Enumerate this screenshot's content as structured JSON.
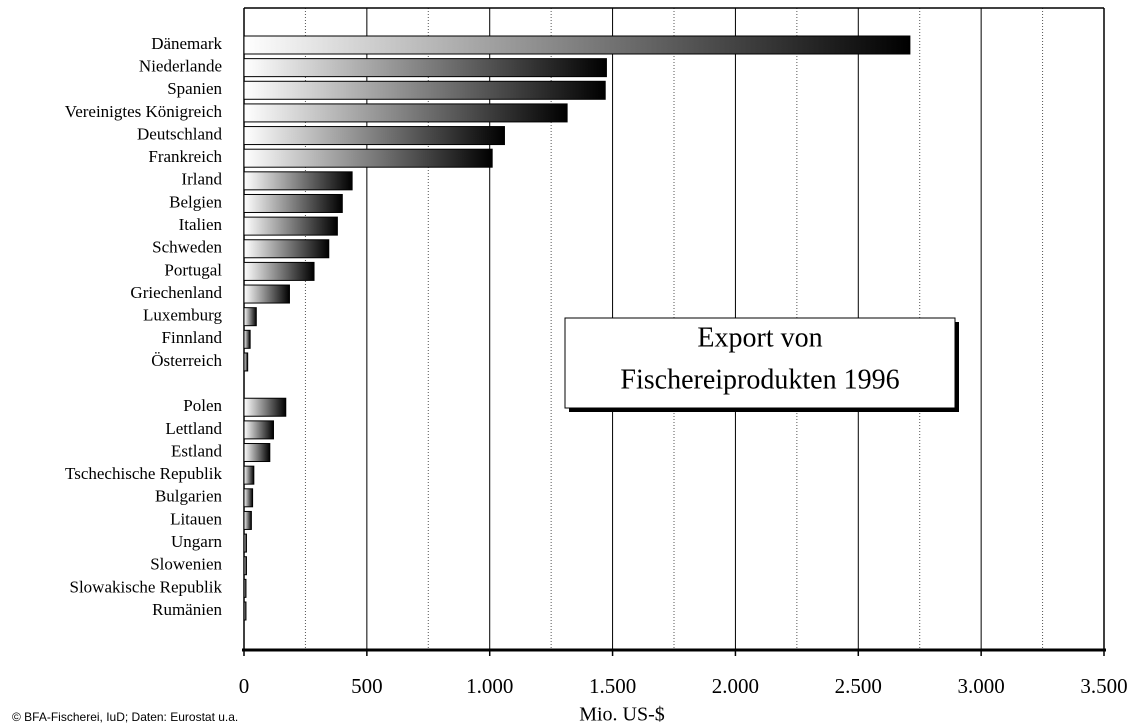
{
  "chart_data": {
    "type": "barh",
    "title": [
      "Export von",
      "Fischereiprodukten 1996"
    ],
    "xlabel": "Mio. US-$",
    "note": "© BFA-Fischerei, IuD; Daten: Eurostat u.a.",
    "categories": [
      "Dänemark",
      "Niederlande",
      "Spanien",
      "Vereinigtes Königreich",
      "Deutschland",
      "Frankreich",
      "Irland",
      "Belgien",
      "Italien",
      "Schweden",
      "Portugal",
      "Griechenland",
      "Luxemburg",
      "Finnland",
      "Österreich",
      null,
      "Polen",
      "Lettland",
      "Estland",
      "Tschechische Republik",
      "Bulgarien",
      "Litauen",
      "Ungarn",
      "Slowenien",
      "Slowakische Republik",
      "Rumänien"
    ],
    "values": [
      2710,
      1475,
      1470,
      1315,
      1060,
      1010,
      440,
      400,
      380,
      345,
      285,
      185,
      50,
      25,
      15,
      null,
      170,
      120,
      105,
      40,
      35,
      30,
      10,
      10,
      8,
      8
    ],
    "gradient": [
      "#ffffff",
      "#000000"
    ],
    "xlim": [
      0,
      3500
    ],
    "xticks": [
      0,
      500,
      {
        "value": 1000,
        "label": "1.000"
      },
      {
        "value": 1500,
        "label": "1.500"
      },
      {
        "value": 2000,
        "label": "2.000"
      },
      {
        "value": 2500,
        "label": "2.500"
      },
      {
        "value": 3000,
        "label": "3.000"
      },
      {
        "value": 3500,
        "label": "3.500"
      }
    ],
    "minor_xticks": [
      250,
      750,
      1250,
      1750,
      2250,
      2750,
      3250
    ],
    "grid": true
  }
}
